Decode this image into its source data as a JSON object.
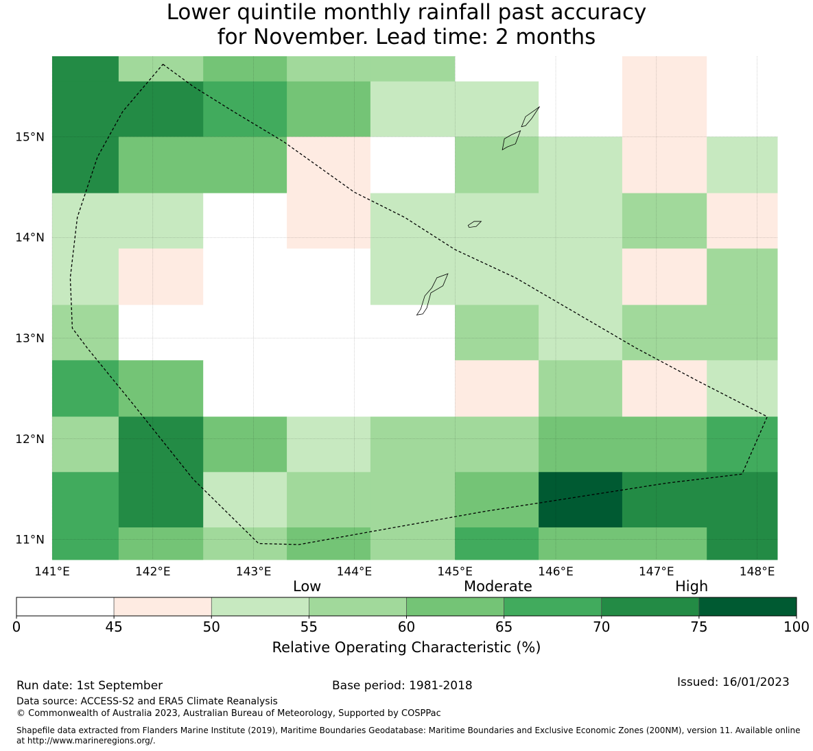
{
  "title": {
    "line1": "Lower quintile monthly rainfall past accuracy",
    "line2": "for November. Lead time: 2 months"
  },
  "map": {
    "lon_range": [
      141.0,
      148.2
    ],
    "lat_range": [
      10.8,
      15.8
    ],
    "lon_ticks": [
      {
        "value": 141,
        "label": "141°E"
      },
      {
        "value": 142,
        "label": "142°E"
      },
      {
        "value": 143,
        "label": "143°E"
      },
      {
        "value": 144,
        "label": "144°E"
      },
      {
        "value": 145,
        "label": "145°E"
      },
      {
        "value": 146,
        "label": "146°E"
      },
      {
        "value": 147,
        "label": "147°E"
      },
      {
        "value": 148,
        "label": "148°E"
      }
    ],
    "lat_ticks": [
      {
        "value": 15,
        "label": "15°N"
      },
      {
        "value": 14,
        "label": "14°N"
      },
      {
        "value": 13,
        "label": "13°N"
      },
      {
        "value": 12,
        "label": "12°N"
      },
      {
        "value": 11,
        "label": "11°N"
      }
    ],
    "grid_note": "Cell categories: 0 = 0-45, 1 = 45-50, 2 = 50-55, 3 = 55-60, 4 = 60-65, 5 = 65-70, 6 = 70-75, 7 = 75-100 (ROC %)",
    "lon_edges": [
      141.0,
      141.66,
      142.5,
      143.33,
      144.16,
      145.0,
      145.83,
      146.66,
      147.5,
      148.2
    ],
    "lat_edges": [
      15.8,
      15.55,
      15.0,
      14.44,
      13.89,
      13.33,
      12.78,
      12.22,
      11.67,
      11.12,
      10.8
    ],
    "rows": [
      [
        6,
        3,
        4,
        3,
        3,
        0,
        0,
        1,
        0
      ],
      [
        6,
        6,
        5,
        4,
        2,
        2,
        0,
        1,
        0
      ],
      [
        6,
        4,
        4,
        1,
        0,
        3,
        2,
        1,
        2
      ],
      [
        2,
        2,
        0,
        1,
        2,
        2,
        2,
        3,
        1
      ],
      [
        2,
        1,
        0,
        0,
        2,
        2,
        2,
        1,
        3
      ],
      [
        3,
        0,
        0,
        0,
        0,
        3,
        2,
        3,
        3
      ],
      [
        5,
        4,
        0,
        0,
        0,
        1,
        3,
        1,
        2
      ],
      [
        3,
        6,
        4,
        2,
        3,
        3,
        4,
        4,
        5
      ],
      [
        5,
        6,
        2,
        3,
        3,
        4,
        7,
        6,
        6
      ],
      [
        5,
        4,
        3,
        4,
        3,
        5,
        4,
        4,
        6
      ]
    ],
    "eez_boundary": [
      [
        142.1,
        15.72
      ],
      [
        142.4,
        15.5
      ],
      [
        142.8,
        15.25
      ],
      [
        143.3,
        14.95
      ],
      [
        144.0,
        14.45
      ],
      [
        144.5,
        14.2
      ],
      [
        145.0,
        13.88
      ],
      [
        145.6,
        13.6
      ],
      [
        146.2,
        13.25
      ],
      [
        146.8,
        12.9
      ],
      [
        147.4,
        12.58
      ],
      [
        148.1,
        12.22
      ],
      [
        147.85,
        11.65
      ],
      [
        147.1,
        11.56
      ],
      [
        146.2,
        11.42
      ],
      [
        145.3,
        11.28
      ],
      [
        144.4,
        11.12
      ],
      [
        143.45,
        10.95
      ],
      [
        143.05,
        10.96
      ],
      [
        142.4,
        11.6
      ],
      [
        141.8,
        12.35
      ],
      [
        141.35,
        12.9
      ],
      [
        141.2,
        13.1
      ],
      [
        141.18,
        13.6
      ],
      [
        141.25,
        14.2
      ],
      [
        141.45,
        14.8
      ],
      [
        141.7,
        15.25
      ],
      [
        142.1,
        15.72
      ]
    ],
    "islands": [
      [
        [
          144.62,
          13.23
        ],
        [
          144.66,
          13.29
        ],
        [
          144.7,
          13.42
        ],
        [
          144.77,
          13.5
        ],
        [
          144.82,
          13.6
        ],
        [
          144.93,
          13.64
        ],
        [
          144.88,
          13.52
        ],
        [
          144.76,
          13.45
        ],
        [
          144.72,
          13.3
        ],
        [
          144.68,
          13.24
        ]
      ],
      [
        [
          145.13,
          14.12
        ],
        [
          145.19,
          14.16
        ],
        [
          145.26,
          14.16
        ],
        [
          145.21,
          14.11
        ],
        [
          145.14,
          14.1
        ]
      ],
      [
        [
          145.47,
          14.87
        ],
        [
          145.49,
          14.98
        ],
        [
          145.56,
          15.02
        ],
        [
          145.65,
          15.06
        ],
        [
          145.6,
          14.93
        ],
        [
          145.52,
          14.9
        ]
      ],
      [
        [
          145.66,
          15.1
        ],
        [
          145.7,
          15.2
        ],
        [
          145.8,
          15.27
        ],
        [
          145.84,
          15.3
        ],
        [
          145.76,
          15.18
        ],
        [
          145.7,
          15.11
        ]
      ]
    ]
  },
  "colorbar": {
    "category_labels": [
      "Low",
      "Moderate",
      "High"
    ],
    "tick_labels": [
      "0",
      "45",
      "50",
      "55",
      "60",
      "65",
      "70",
      "75",
      "100"
    ],
    "colors": [
      "#ffffff",
      "#feebe2",
      "#c7e9c0",
      "#a1d99b",
      "#74c476",
      "#41ab5d",
      "#238b45",
      "#005a32"
    ],
    "xlabel": "Relative Operating Characteristic (%)"
  },
  "footer": {
    "run_date": "Run date: 1st September",
    "base_period": "Base period: 1981-2018",
    "issued": "Issued: 16/01/2023",
    "data_source": "Data source: ACCESS-S2 and ERA5 Climate Reanalysis",
    "copyright": "© Commonwealth of Australia 2023, Australian Bureau of Meteorology, Supported by COSPPac",
    "shapefile_line1": "Shapefile data extracted from Flanders Marine Institute (2019), Maritime Boundaries Geodatabase: Maritime Boundaries and Exclusive Economic Zones (200NM), version 11. Available online",
    "shapefile_line2": "at http://www.marineregions.org/."
  }
}
